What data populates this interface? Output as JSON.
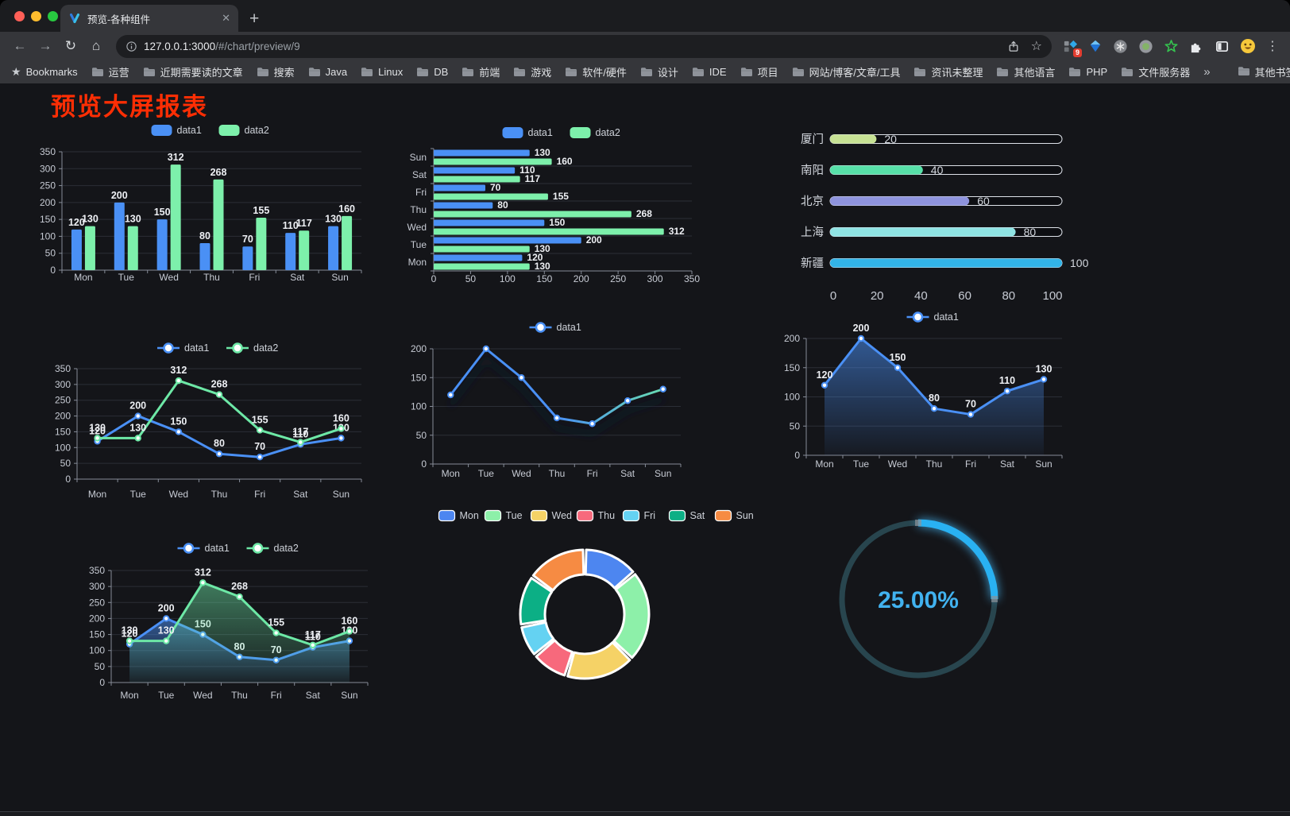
{
  "browser": {
    "traffic_lights": [
      "#ff5f57",
      "#febc2e",
      "#28c840"
    ],
    "tab": {
      "title": "预览-各种组件",
      "close_glyph": "✕",
      "new_tab_glyph": "+"
    },
    "nav": {
      "back": "←",
      "forward": "→",
      "reload": "↻",
      "home": "⌂"
    },
    "address": {
      "host": "127.0.0.1:3000",
      "path": "/#/chart/preview/9"
    },
    "bookmark_star": "☆",
    "menu_glyph": "⋮",
    "extensions_badge": "9",
    "bookmarks": {
      "root_label": "Bookmarks",
      "root_star": "★",
      "items": [
        "运营",
        "近期需要读的文章",
        "搜索",
        "Java",
        "Linux",
        "DB",
        "前端",
        "游戏",
        "软件/硬件",
        "设计",
        "IDE",
        "项目",
        "网站/博客/文章/工具",
        "资讯未整理",
        "其他语言",
        "PHP",
        "文件服务器"
      ],
      "overflow_glyph": "»",
      "other_label": "其他书签"
    }
  },
  "page": {
    "title": "预览大屏报表",
    "title_color": "#ff2e04"
  },
  "chart_data": [
    {
      "id": "bar-vertical",
      "type": "bar",
      "categories": [
        "Mon",
        "Tue",
        "Wed",
        "Thu",
        "Fri",
        "Sat",
        "Sun"
      ],
      "series": [
        {
          "name": "data1",
          "color": "#4a90f5",
          "values": [
            120,
            200,
            150,
            80,
            70,
            110,
            130
          ]
        },
        {
          "name": "data2",
          "color": "#7df0ab",
          "values": [
            130,
            130,
            312,
            268,
            155,
            117,
            160
          ]
        }
      ],
      "ylim": [
        0,
        350
      ],
      "ytick": 50,
      "value_labels": true,
      "legend_position": "top",
      "grid": true
    },
    {
      "id": "bar-horizontal",
      "type": "hbar",
      "categories": [
        "Mon",
        "Tue",
        "Wed",
        "Thu",
        "Fri",
        "Sat",
        "Sun"
      ],
      "series": [
        {
          "name": "data1",
          "color": "#4a90f5",
          "values": [
            120,
            200,
            150,
            80,
            70,
            110,
            130
          ]
        },
        {
          "name": "data2",
          "color": "#7df0ab",
          "values": [
            130,
            130,
            312,
            268,
            155,
            117,
            160
          ]
        }
      ],
      "xlim": [
        0,
        350
      ],
      "xtick": 50,
      "value_labels": true,
      "legend_position": "top",
      "grid": true
    },
    {
      "id": "progress-list",
      "type": "progress",
      "max": 100,
      "rows": [
        {
          "label": "厦门",
          "value": 20,
          "color": "#c7e294"
        },
        {
          "label": "南阳",
          "value": 40,
          "color": "#57e0a8"
        },
        {
          "label": "北京",
          "value": 60,
          "color": "#8e93dd"
        },
        {
          "label": "上海",
          "value": 80,
          "color": "#8fe3e3"
        },
        {
          "label": "新疆",
          "value": 100,
          "color": "#32b4e8"
        }
      ],
      "axis_ticks": [
        0,
        20,
        40,
        60,
        80,
        100
      ]
    },
    {
      "id": "line-two",
      "type": "line",
      "categories": [
        "Mon",
        "Tue",
        "Wed",
        "Thu",
        "Fri",
        "Sat",
        "Sun"
      ],
      "series": [
        {
          "name": "data1",
          "color": "#4a90f5",
          "values": [
            120,
            200,
            150,
            80,
            70,
            110,
            130
          ]
        },
        {
          "name": "data2",
          "color": "#6de8a6",
          "values": [
            130,
            130,
            312,
            268,
            155,
            117,
            160
          ]
        }
      ],
      "ylim": [
        0,
        350
      ],
      "ytick": 50,
      "value_labels": true,
      "legend_position": "top",
      "grid": true
    },
    {
      "id": "line-gradient",
      "type": "line",
      "categories": [
        "Mon",
        "Tue",
        "Wed",
        "Thu",
        "Fri",
        "Sat",
        "Sun"
      ],
      "series": [
        {
          "name": "data1",
          "color": "#4a90f5",
          "gradient": [
            "#4a90f5",
            "#6de8a6"
          ],
          "values": [
            120,
            200,
            150,
            80,
            70,
            110,
            130
          ]
        }
      ],
      "ylim": [
        0,
        200
      ],
      "ytick": 50,
      "value_labels": false,
      "shadow": true,
      "legend_position": "top",
      "grid": true
    },
    {
      "id": "area-one",
      "type": "line",
      "area": true,
      "categories": [
        "Mon",
        "Tue",
        "Wed",
        "Thu",
        "Fri",
        "Sat",
        "Sun"
      ],
      "series": [
        {
          "name": "data1",
          "color": "#4a90f5",
          "values": [
            120,
            200,
            150,
            80,
            70,
            110,
            130
          ]
        }
      ],
      "ylim": [
        0,
        200
      ],
      "ytick": 50,
      "value_labels": true,
      "legend_position": "top",
      "grid": true
    },
    {
      "id": "area-two",
      "type": "line",
      "area": true,
      "categories": [
        "Mon",
        "Tue",
        "Wed",
        "Thu",
        "Fri",
        "Sat",
        "Sun"
      ],
      "series": [
        {
          "name": "data1",
          "color": "#4a90f5",
          "values": [
            120,
            200,
            150,
            80,
            70,
            110,
            130
          ]
        },
        {
          "name": "data2",
          "color": "#6de8a6",
          "values": [
            130,
            130,
            312,
            268,
            155,
            117,
            160
          ]
        }
      ],
      "ylim": [
        0,
        350
      ],
      "ytick": 50,
      "value_labels": true,
      "legend_position": "top",
      "grid": true
    },
    {
      "id": "pie-week",
      "type": "donut",
      "items": [
        {
          "label": "Mon",
          "value": 120,
          "color": "#4d86f0"
        },
        {
          "label": "Tue",
          "value": 200,
          "color": "#8df0a9"
        },
        {
          "label": "Wed",
          "value": 150,
          "color": "#f5d266"
        },
        {
          "label": "Thu",
          "value": 80,
          "color": "#f7697c"
        },
        {
          "label": "Fri",
          "value": 70,
          "color": "#64d2f2"
        },
        {
          "label": "Sat",
          "value": 110,
          "color": "#0caf85"
        },
        {
          "label": "Sun",
          "value": 130,
          "color": "#f68b43"
        }
      ],
      "legend_position": "top"
    },
    {
      "id": "gauge-percent",
      "type": "gauge",
      "value": 25,
      "display": "25.00%",
      "color": "#29b1f2",
      "track_color": "#28454e",
      "text_color": "#41b2ef"
    }
  ]
}
